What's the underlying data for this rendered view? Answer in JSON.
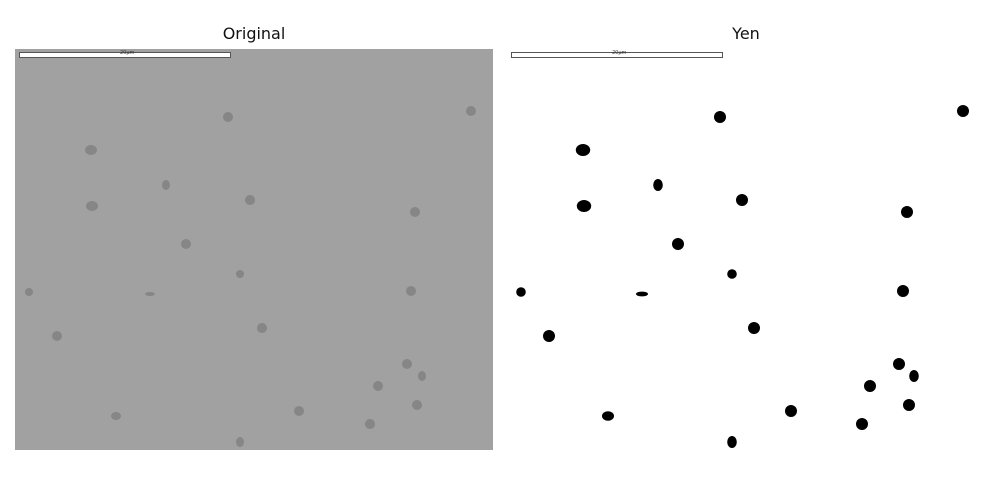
{
  "panels": {
    "original": {
      "title": "Original",
      "scale_label": "20µm"
    },
    "yen": {
      "title": "Yen",
      "scale_label": "20µm"
    }
  },
  "colors": {
    "original_background": "#a1a1a1",
    "original_particle": "#868686",
    "yen_background": "#ffffff",
    "yen_particle": "#000000"
  }
}
